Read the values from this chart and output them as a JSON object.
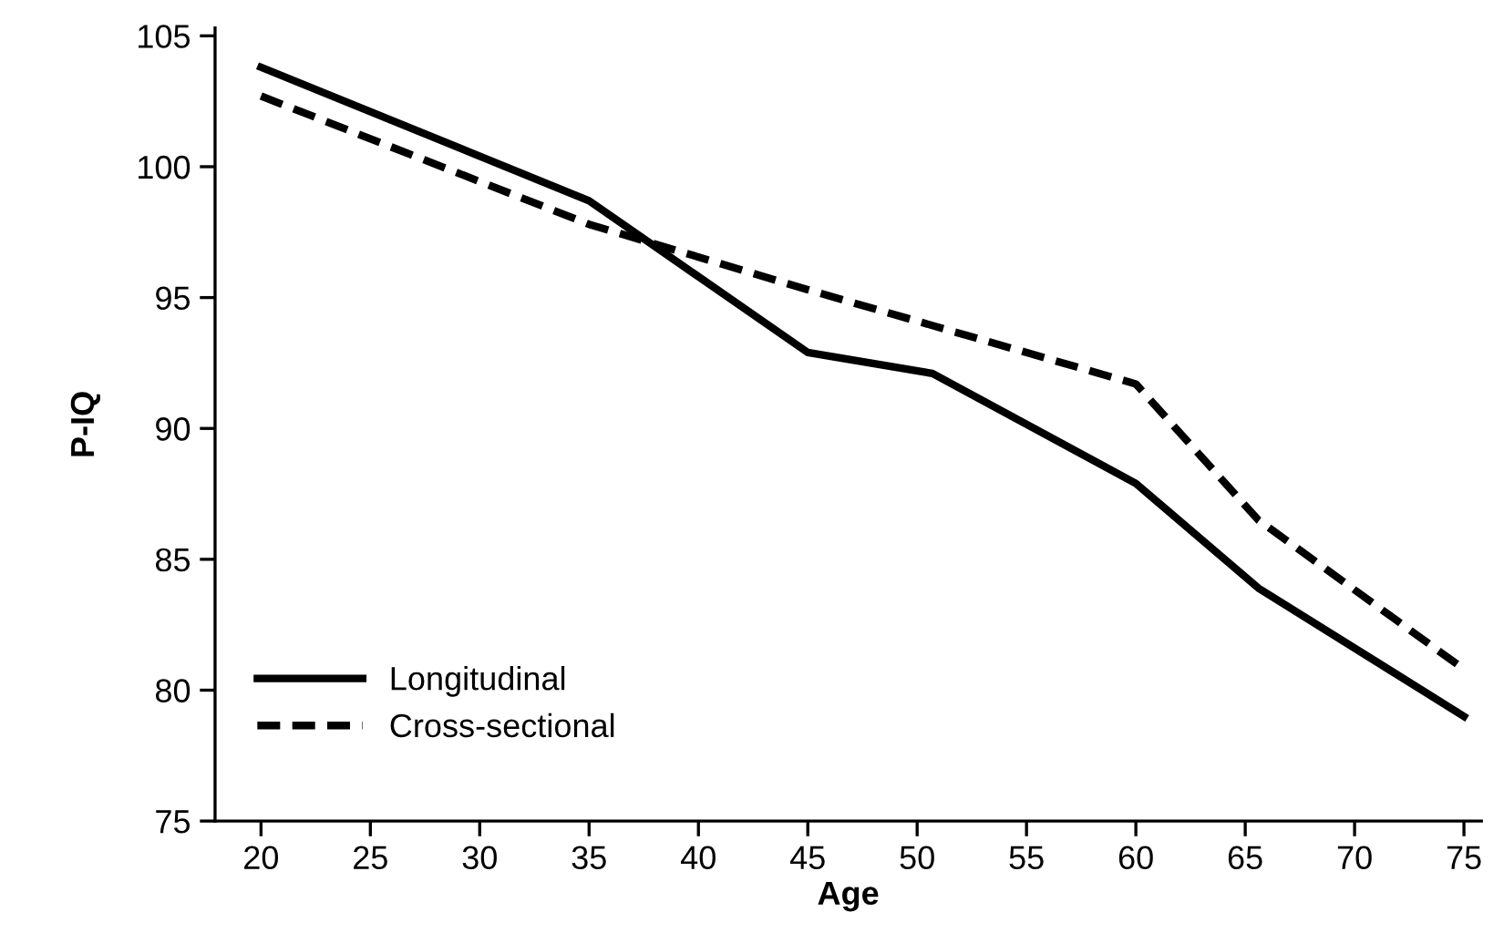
{
  "chart_data": {
    "type": "line",
    "xlabel": "Age",
    "ylabel": "P-IQ",
    "xlim": [
      17.9,
      75.8
    ],
    "ylim": [
      75,
      105.3
    ],
    "xticks": [
      20,
      25,
      30,
      35,
      40,
      45,
      50,
      55,
      60,
      65,
      70,
      75
    ],
    "yticks": [
      75,
      80,
      85,
      90,
      95,
      100,
      105
    ],
    "grid": false,
    "legend": "bottom left",
    "series": [
      {
        "name": "Longitudinal",
        "color": "#000000",
        "line_style": "solid",
        "x": [
          20,
          35,
          45,
          50.7,
          60,
          65.6,
          75
        ],
        "values": [
          103.8,
          98.7,
          92.9,
          92.1,
          87.9,
          83.9,
          79.0
        ]
      },
      {
        "name": "Cross-sectional",
        "color": "#000000",
        "line_style": "dashed",
        "x": [
          20,
          35,
          45,
          60,
          65.6,
          75
        ],
        "values": [
          102.7,
          97.8,
          95.3,
          91.7,
          86.5,
          80.8
        ]
      }
    ]
  }
}
